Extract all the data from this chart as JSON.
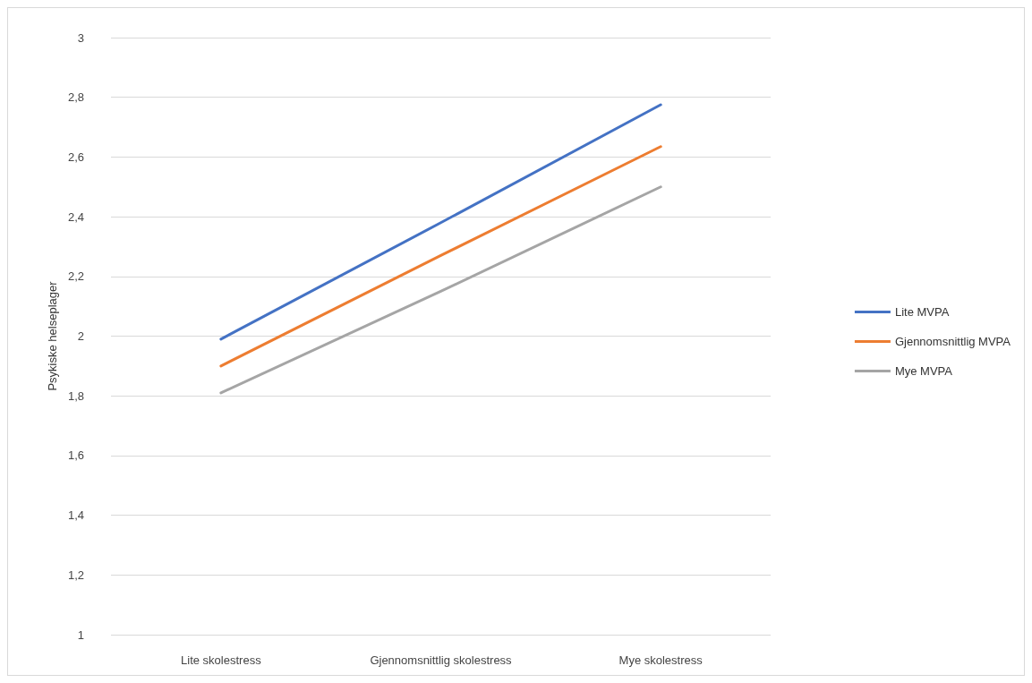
{
  "chart_data": {
    "type": "line",
    "ylabel": "Psykiske helseplager",
    "categories": [
      "Lite skolestress",
      "Gjennomsnittlig skolestress",
      "Mye skolestress"
    ],
    "series": [
      {
        "name": "Lite MVPA",
        "color": "#4472c4",
        "values": [
          1.99,
          2.38,
          2.775
        ]
      },
      {
        "name": "Gjennomsnittlig MVPA",
        "color": "#ed7d31",
        "values": [
          1.9,
          2.27,
          2.635
        ]
      },
      {
        "name": "Mye MVPA",
        "color": "#a5a5a5",
        "values": [
          1.81,
          2.15,
          2.5
        ]
      }
    ],
    "ylim": [
      1,
      3
    ],
    "yticks": [
      1,
      {
        "value": 1.2,
        "label": "1,2"
      },
      {
        "value": 1.4,
        "label": "1,4"
      },
      {
        "value": 1.6,
        "label": "1,6"
      },
      {
        "value": 1.8,
        "label": "1,8"
      },
      2,
      {
        "value": 2.2,
        "label": "2,2"
      },
      {
        "value": 2.4,
        "label": "2,4"
      },
      {
        "value": 2.6,
        "label": "2,6"
      },
      {
        "value": 2.8,
        "label": "2,8"
      },
      3
    ],
    "grid": "y",
    "legend": "right",
    "marker": "none",
    "line_style": "solid"
  }
}
